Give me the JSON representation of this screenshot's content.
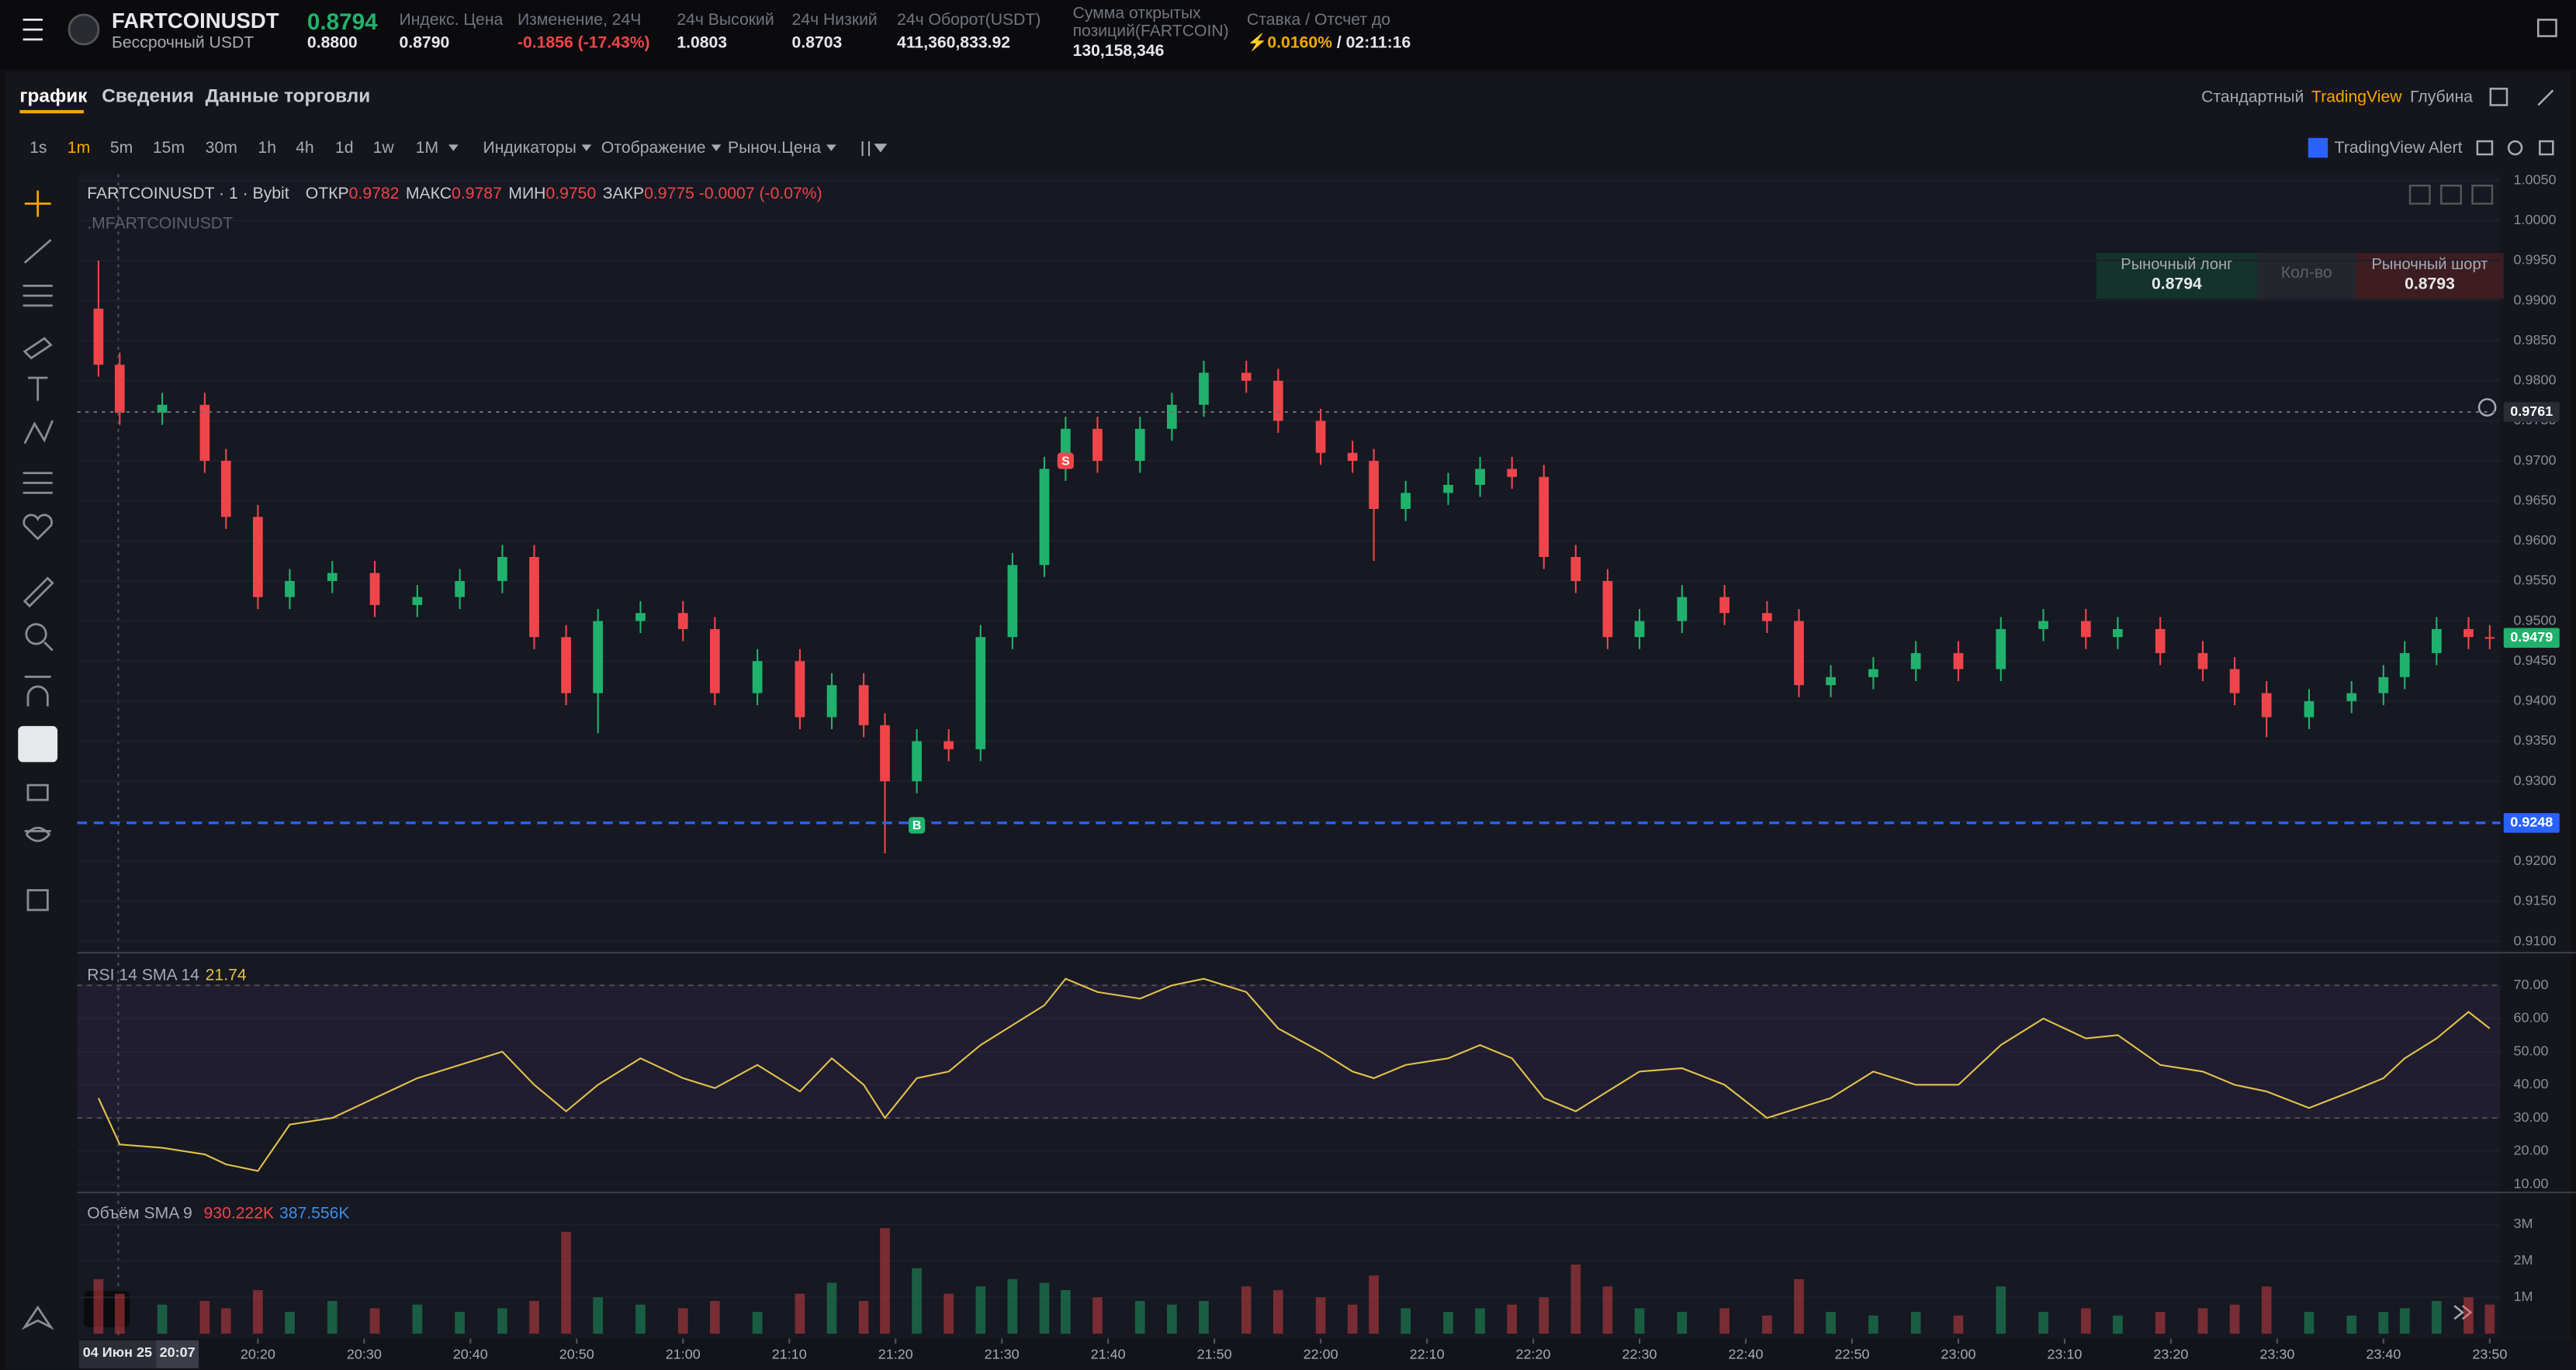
{
  "header": {
    "symbol": "FARTCOINUSDT",
    "contract": "Бессрочный USDT",
    "last_price": "0.8794",
    "mark_price": "0.8800",
    "stats": [
      {
        "label": "Индекс. Цена",
        "value": "0.8790"
      },
      {
        "label": "Изменение, 24Ч",
        "value": "-0.1856 (-17.43%)"
      },
      {
        "label": "24ч Высокий",
        "value": "1.0803"
      },
      {
        "label": "24ч Низкий",
        "value": "0.8703"
      },
      {
        "label": "24ч Оборот(USDT)",
        "value": "411,360,833.92"
      },
      {
        "label": "Сумма открытых позиций(FARTCOIN)",
        "value": "130,158,346"
      }
    ],
    "funding": {
      "label": "Ставка / Отсчет до",
      "rate": "0.0160%",
      "countdown": "/ 02:11:16"
    }
  },
  "tabs": {
    "left": [
      "график",
      "Сведения",
      "Данные торговли"
    ],
    "right": [
      "Стандартный",
      "TradingView",
      "Глубина"
    ]
  },
  "toolbar": {
    "intervals": [
      "1s",
      "1m",
      "5m",
      "15m",
      "30m",
      "1h",
      "4h",
      "1d",
      "1w",
      "1M"
    ],
    "active_interval": 1,
    "menus": [
      "Индикаторы",
      "Отображение",
      "Рыноч.Цена"
    ],
    "alert": "TradingView Alert"
  },
  "legend": {
    "title": "FARTCOINUSDT · 1 · Bybit",
    "items": [
      {
        "label": "ОТКР",
        "value": "0.9782"
      },
      {
        "label": "МАКС",
        "value": "0.9787"
      },
      {
        "label": "МИН",
        "value": "0.9750"
      },
      {
        "label": "ЗАКР",
        "value": "0.9775"
      }
    ],
    "change": "-0.0007 (-0.07%)",
    "mark_series": ".MFARTCOINUSDT"
  },
  "order_panel": {
    "long_label": "Рыночный лонг",
    "long_price": "0.8794",
    "qty": "Кол-во",
    "short_label": "Рыночный шорт",
    "short_price": "0.8793"
  },
  "footer": {
    "date": "04 Июн 25",
    "time": "20:07"
  },
  "chart_data": [
    {
      "type": "candlestick",
      "up_color": "#20b26c",
      "down_color": "#ef454a",
      "grid": true,
      "x": [
        1205,
        1207,
        1211,
        1215,
        1217,
        1220,
        1223,
        1227,
        1231,
        1235,
        1239,
        1243,
        1246,
        1249,
        1252,
        1256,
        1260,
        1263,
        1267,
        1271,
        1274,
        1277,
        1279,
        1282,
        1285,
        1288,
        1291,
        1294,
        1296,
        1299,
        1303,
        1306,
        1309,
        1313,
        1316,
        1320,
        1323,
        1325,
        1328,
        1332,
        1335,
        1338,
        1341,
        1344,
        1347,
        1350,
        1354,
        1358,
        1362,
        1365,
        1368,
        1372,
        1376,
        1380,
        1384,
        1388,
        1392,
        1395,
        1399,
        1403,
        1406,
        1409,
        1413,
        1417,
        1420,
        1422,
        1425,
        1428,
        1430
      ],
      "open": [
        0.989,
        0.982,
        0.976,
        0.977,
        0.97,
        0.963,
        0.953,
        0.955,
        0.956,
        0.952,
        0.953,
        0.955,
        0.958,
        0.948,
        0.941,
        0.95,
        0.951,
        0.949,
        0.941,
        0.945,
        0.938,
        0.942,
        0.937,
        0.93,
        0.935,
        0.934,
        0.948,
        0.957,
        0.969,
        0.974,
        0.97,
        0.974,
        0.977,
        0.981,
        0.98,
        0.975,
        0.971,
        0.97,
        0.964,
        0.966,
        0.967,
        0.969,
        0.968,
        0.958,
        0.955,
        0.948,
        0.95,
        0.953,
        0.951,
        0.95,
        0.942,
        0.943,
        0.944,
        0.946,
        0.944,
        0.949,
        0.95,
        0.948,
        0.949,
        0.946,
        0.944,
        0.941,
        0.938,
        0.94,
        0.941,
        0.943,
        0.946,
        0.949,
        0.948
      ],
      "high": [
        0.995,
        0.9835,
        0.9785,
        0.9785,
        0.9715,
        0.9645,
        0.9565,
        0.9575,
        0.9575,
        0.9545,
        0.9565,
        0.9595,
        0.9595,
        0.9495,
        0.9515,
        0.9525,
        0.9525,
        0.9505,
        0.9465,
        0.9465,
        0.9435,
        0.9435,
        0.9385,
        0.9365,
        0.9365,
        0.9495,
        0.9585,
        0.9705,
        0.9755,
        0.9755,
        0.9755,
        0.9785,
        0.9825,
        0.9825,
        0.9815,
        0.9765,
        0.9725,
        0.9715,
        0.9675,
        0.9685,
        0.9705,
        0.9705,
        0.9695,
        0.9595,
        0.9565,
        0.9515,
        0.9545,
        0.9545,
        0.9525,
        0.9515,
        0.9445,
        0.9455,
        0.9475,
        0.9475,
        0.9505,
        0.9515,
        0.9515,
        0.9505,
        0.9505,
        0.9475,
        0.9455,
        0.9425,
        0.9415,
        0.9425,
        0.9445,
        0.9475,
        0.9505,
        0.9505,
        0.9495
      ],
      "low": [
        0.9805,
        0.9745,
        0.9745,
        0.9685,
        0.9615,
        0.9515,
        0.9515,
        0.9535,
        0.9505,
        0.9505,
        0.9515,
        0.9535,
        0.9465,
        0.9395,
        0.936,
        0.9485,
        0.9475,
        0.9395,
        0.9395,
        0.9365,
        0.9365,
        0.9355,
        0.921,
        0.9285,
        0.9325,
        0.9325,
        0.9465,
        0.9555,
        0.9675,
        0.9685,
        0.9685,
        0.9725,
        0.9755,
        0.9785,
        0.9735,
        0.9695,
        0.9685,
        0.9575,
        0.9625,
        0.9645,
        0.9655,
        0.9665,
        0.9565,
        0.9535,
        0.9465,
        0.9465,
        0.9485,
        0.9495,
        0.9485,
        0.9405,
        0.9405,
        0.9415,
        0.9425,
        0.9425,
        0.9425,
        0.9475,
        0.9465,
        0.9465,
        0.9445,
        0.9425,
        0.9395,
        0.9355,
        0.9365,
        0.9385,
        0.9395,
        0.9415,
        0.9445,
        0.9465,
        0.9465
      ],
      "close": [
        0.982,
        0.976,
        0.977,
        0.97,
        0.963,
        0.953,
        0.955,
        0.956,
        0.952,
        0.953,
        0.955,
        0.958,
        0.948,
        0.941,
        0.95,
        0.951,
        0.949,
        0.941,
        0.945,
        0.938,
        0.942,
        0.937,
        0.93,
        0.935,
        0.934,
        0.948,
        0.957,
        0.969,
        0.974,
        0.97,
        0.974,
        0.977,
        0.981,
        0.98,
        0.975,
        0.971,
        0.97,
        0.964,
        0.966,
        0.967,
        0.969,
        0.968,
        0.958,
        0.955,
        0.948,
        0.95,
        0.953,
        0.951,
        0.95,
        0.942,
        0.943,
        0.944,
        0.946,
        0.944,
        0.949,
        0.95,
        0.948,
        0.949,
        0.946,
        0.944,
        0.941,
        0.938,
        0.94,
        0.941,
        0.943,
        0.946,
        0.949,
        0.948,
        0.9479
      ],
      "xlim": [
        1203,
        1431
      ],
      "xticks": [
        {
          "value": 1220,
          "label": "20:20"
        },
        {
          "value": 1230,
          "label": "20:30"
        },
        {
          "value": 1240,
          "label": "20:40"
        },
        {
          "value": 1250,
          "label": "20:50"
        },
        {
          "value": 1260,
          "label": "21:00"
        },
        {
          "value": 1270,
          "label": "21:10"
        },
        {
          "value": 1280,
          "label": "21:20"
        },
        {
          "value": 1290,
          "label": "21:30"
        },
        {
          "value": 1300,
          "label": "21:40"
        },
        {
          "value": 1310,
          "label": "21:50"
        },
        {
          "value": 1320,
          "label": "22:00"
        },
        {
          "value": 1330,
          "label": "22:10"
        },
        {
          "value": 1340,
          "label": "22:20"
        },
        {
          "value": 1350,
          "label": "22:30"
        },
        {
          "value": 1360,
          "label": "22:40"
        },
        {
          "value": 1370,
          "label": "22:50"
        },
        {
          "value": 1380,
          "label": "23:00"
        },
        {
          "value": 1390,
          "label": "23:10"
        },
        {
          "value": 1400,
          "label": "23:20"
        },
        {
          "value": 1410,
          "label": "23:30"
        },
        {
          "value": 1420,
          "label": "23:40"
        },
        {
          "value": 1430,
          "label": "23:50"
        }
      ],
      "ylim": [
        0.9086,
        1.0058
      ],
      "yticks": [
        {
          "value": 0.91,
          "label": "0.9100"
        },
        {
          "value": 0.915,
          "label": "0.9150"
        },
        {
          "value": 0.92,
          "label": "0.9200"
        },
        {
          "value": 0.925,
          "label": "0.9250"
        },
        {
          "value": 0.93,
          "label": "0.9300"
        },
        {
          "value": 0.935,
          "label": "0.9350"
        },
        {
          "value": 0.94,
          "label": "0.9400"
        },
        {
          "value": 0.945,
          "label": "0.9450"
        },
        {
          "value": 0.95,
          "label": "0.9500"
        },
        {
          "value": 0.955,
          "label": "0.9550"
        },
        {
          "value": 0.96,
          "label": "0.9600"
        },
        {
          "value": 0.965,
          "label": "0.9650"
        },
        {
          "value": 0.97,
          "label": "0.9700"
        },
        {
          "value": 0.975,
          "label": "0.9750"
        },
        {
          "value": 0.98,
          "label": "0.9800"
        },
        {
          "value": 0.985,
          "label": "0.9850"
        },
        {
          "value": 0.99,
          "label": "0.9900"
        },
        {
          "value": 0.995,
          "label": "0.9950"
        },
        {
          "value": 1.0,
          "label": "1.0000"
        },
        {
          "value": 1.005,
          "label": "1.0050"
        }
      ],
      "price_lines": [
        {
          "value": 0.9761,
          "label": "0.9761",
          "color": "#6b6e78",
          "label_bg": "#2a2d36",
          "line": true
        },
        {
          "value": 0.9479,
          "label": "0.9479",
          "color": "#20b26c",
          "label_bg": "#20b26c",
          "line": false
        },
        {
          "value": 0.9248,
          "label": "0.9248",
          "color": "#2962ff",
          "label_bg": "#2962ff",
          "line": true
        }
      ],
      "markers": [
        {
          "x": 1296,
          "y": 0.97,
          "label": "S",
          "color": "#ef454a"
        },
        {
          "x": 1282,
          "y": 0.9245,
          "label": "B",
          "color": "#20b26c"
        }
      ]
    },
    {
      "type": "line",
      "legend_title": "RSI 14 SMA 14",
      "legend_value": "21.74",
      "color": "#e2c14b",
      "bands": [
        30,
        70
      ],
      "values": [
        36,
        22,
        21,
        19,
        16,
        14,
        28,
        30,
        36,
        42,
        46,
        50,
        40,
        32,
        40,
        48,
        42,
        39,
        46,
        38,
        48,
        40,
        30,
        42,
        44,
        52,
        58,
        64,
        72,
        68,
        66,
        70,
        72,
        68,
        57,
        50,
        44,
        42,
        46,
        48,
        52,
        48,
        36,
        32,
        38,
        44,
        45,
        40,
        30,
        33,
        36,
        44,
        40,
        40,
        52,
        60,
        54,
        55,
        46,
        44,
        40,
        38,
        33,
        38,
        42,
        48,
        54,
        62,
        57
      ],
      "ylim": [
        8,
        77.4
      ],
      "yticks": [
        {
          "value": 10,
          "label": "10.00"
        },
        {
          "value": 20,
          "label": "20.00"
        },
        {
          "value": 30,
          "label": "30.00"
        },
        {
          "value": 40,
          "label": "40.00"
        },
        {
          "value": 50,
          "label": "50.00"
        },
        {
          "value": 60,
          "label": "60.00"
        },
        {
          "value": 70,
          "label": "70.00"
        }
      ]
    },
    {
      "type": "bar",
      "legend_title": "Объём SMA 9",
      "legend_values": [
        "930.222K",
        "387.556K"
      ],
      "legend_colors": [
        "#ef454a",
        "#3d8ee8"
      ],
      "values": [
        1500000,
        1100000,
        800000,
        900000,
        700000,
        1200000,
        600000,
        900000,
        700000,
        800000,
        600000,
        700000,
        900000,
        2800000,
        1000000,
        800000,
        700000,
        900000,
        600000,
        1100000,
        1400000,
        900000,
        2900000,
        1800000,
        1100000,
        1300000,
        1500000,
        1400000,
        1200000,
        1000000,
        900000,
        800000,
        900000,
        1300000,
        1200000,
        1000000,
        800000,
        1600000,
        700000,
        600000,
        700000,
        800000,
        1000000,
        1900000,
        1300000,
        700000,
        600000,
        700000,
        500000,
        1500000,
        600000,
        500000,
        600000,
        500000,
        1300000,
        600000,
        700000,
        500000,
        600000,
        700000,
        800000,
        1300000,
        600000,
        500000,
        600000,
        700000,
        900000,
        1000000,
        800000
      ],
      "ylim": [
        0,
        3700000
      ],
      "yticks": [
        {
          "value": 1000000,
          "label": "1M"
        },
        {
          "value": 2000000,
          "label": "2M"
        },
        {
          "value": 3000000,
          "label": "3M"
        }
      ]
    }
  ]
}
